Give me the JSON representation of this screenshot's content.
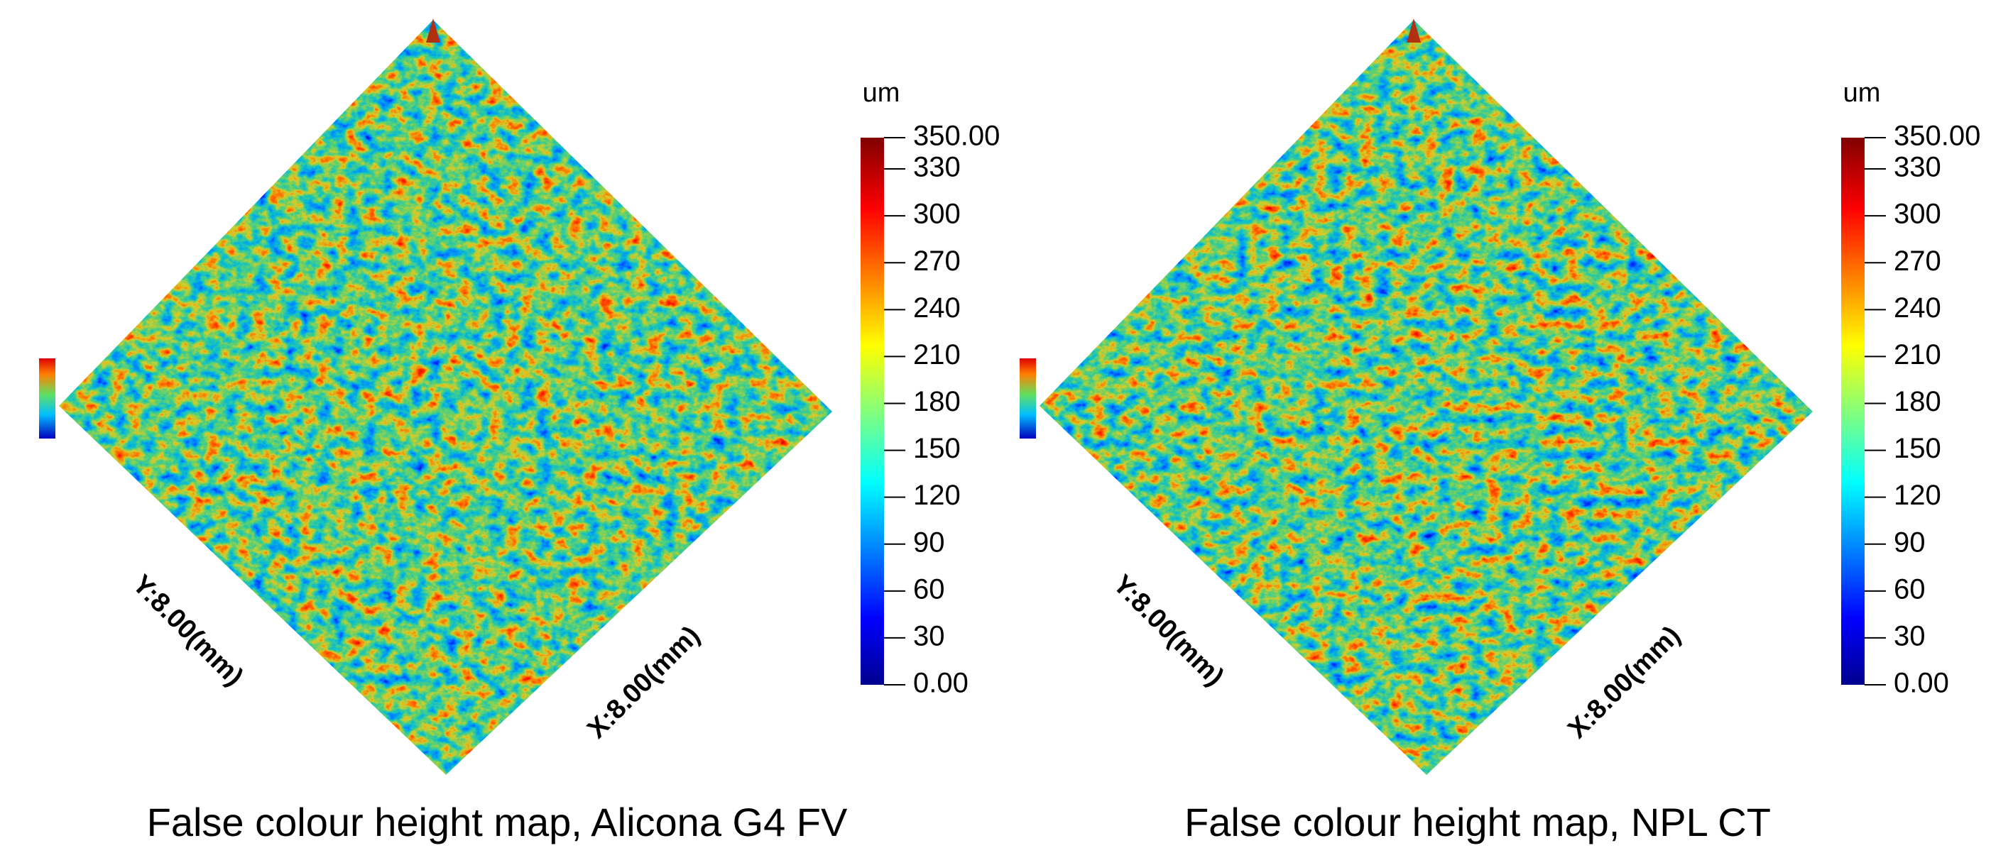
{
  "chart_data": [
    {
      "type": "surface",
      "caption": "False colour height map, Alicona G4 FV",
      "x_label": "X:8.00(mm)",
      "y_label": "Y:8.00(mm)",
      "colorbar_label": "um",
      "clim": [
        0,
        350
      ],
      "cticks": [
        {
          "value": 350,
          "label": "350.00"
        },
        330,
        300,
        270,
        240,
        210,
        180,
        150,
        120,
        90,
        60,
        30,
        {
          "value": 0,
          "label": "0.00"
        }
      ]
    },
    {
      "type": "surface",
      "caption": "False colour height map, NPL CT",
      "x_label": "X:8.00(mm)",
      "y_label": "Y:8.00(mm)",
      "colorbar_label": "um",
      "clim": [
        0,
        350
      ],
      "cticks": [
        {
          "value": 350,
          "label": "350.00"
        },
        330,
        300,
        270,
        240,
        210,
        180,
        150,
        120,
        90,
        60,
        30,
        {
          "value": 0,
          "label": "0.00"
        }
      ]
    }
  ]
}
